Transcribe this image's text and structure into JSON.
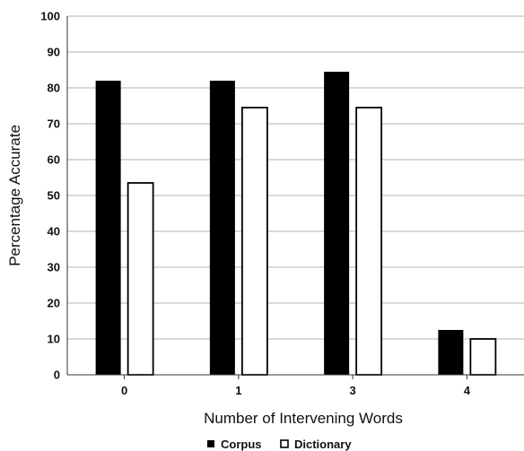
{
  "chart_data": {
    "type": "bar",
    "categories": [
      "0",
      "1",
      "3",
      "4"
    ],
    "series": [
      {
        "name": "Corpus",
        "values": [
          82,
          82,
          84.5,
          12.5
        ],
        "color": "#000000",
        "fill": "solid"
      },
      {
        "name": "Dictionary",
        "values": [
          53.5,
          74.5,
          74.5,
          10
        ],
        "color": "#ffffff",
        "fill": "outline"
      }
    ],
    "xlabel": "Number of Intervening Words",
    "ylabel": "Percentage Accurate",
    "ylim": [
      0,
      100
    ],
    "yticks": [
      "0",
      "10",
      "20",
      "30",
      "40",
      "50",
      "60",
      "70",
      "80",
      "90",
      "100"
    ],
    "grid": true,
    "legend_position": "bottom"
  }
}
